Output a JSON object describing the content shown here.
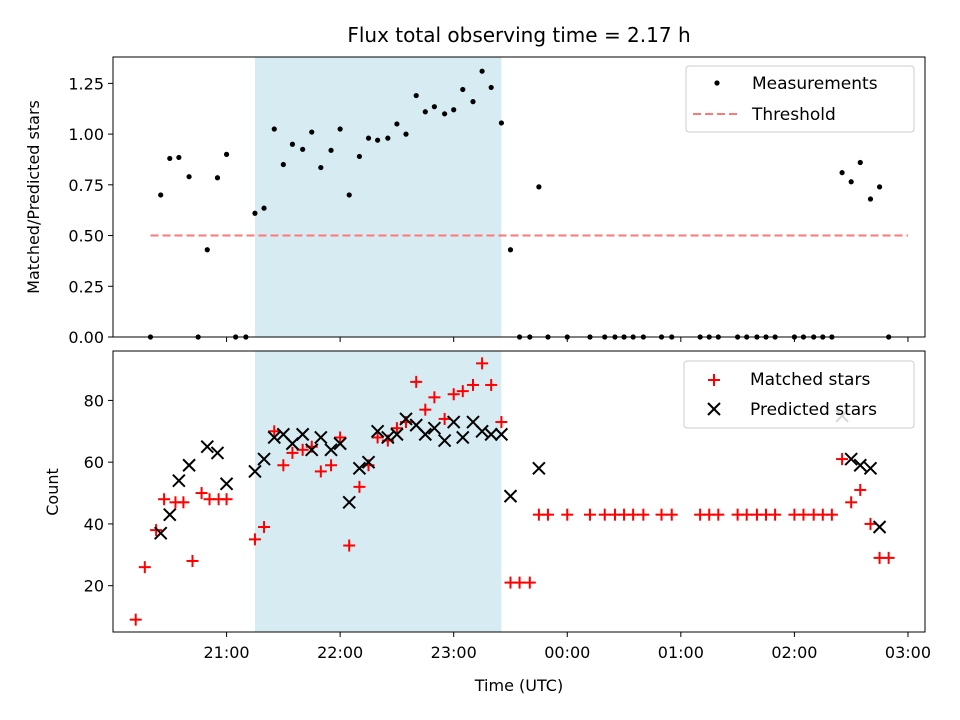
{
  "chart_data": [
    {
      "type": "scatter",
      "title": "Flux total observing time = 2.17 h",
      "ylabel": "Matched/Predicted stars",
      "xlabel": "",
      "x_axis": {
        "unit": "hours UTC (values > 24 are the next day)",
        "range": [
          20.0,
          27.15
        ],
        "ticks": [
          21,
          22,
          23,
          24,
          25,
          26,
          27
        ],
        "tick_labels": []
      },
      "y_axis": {
        "range": [
          0.0,
          1.38
        ],
        "ticks": [
          0.0,
          0.25,
          0.5,
          0.75,
          1.0,
          1.25
        ],
        "tick_labels": [
          "0.00",
          "0.25",
          "0.50",
          "0.75",
          "1.00",
          "1.25"
        ]
      },
      "highlight_span": {
        "x_start": 21.25,
        "x_end": 23.42,
        "color": "#add8e6"
      },
      "threshold": {
        "name": "Threshold",
        "value": 0.5,
        "x_start": 20.33,
        "x_end": 27.0,
        "color": "#ff7777"
      },
      "legend": {
        "placement": "top-right",
        "entries": [
          {
            "label": "Measurements",
            "marker": "dot"
          },
          {
            "label": "Threshold",
            "marker": "dash"
          }
        ]
      },
      "series": [
        {
          "name": "Measurements",
          "color": "#000000",
          "points": [
            [
              20.33,
              0.0
            ],
            [
              20.42,
              0.7
            ],
            [
              20.5,
              0.88
            ],
            [
              20.58,
              0.885
            ],
            [
              20.67,
              0.79
            ],
            [
              20.75,
              0.0
            ],
            [
              20.83,
              0.43
            ],
            [
              20.92,
              0.785
            ],
            [
              21.0,
              0.9
            ],
            [
              21.08,
              0.0
            ],
            [
              21.17,
              0.0
            ],
            [
              21.25,
              0.61
            ],
            [
              21.33,
              0.635
            ],
            [
              21.42,
              1.025
            ],
            [
              21.5,
              0.85
            ],
            [
              21.58,
              0.95
            ],
            [
              21.67,
              0.925
            ],
            [
              21.75,
              1.01
            ],
            [
              21.83,
              0.835
            ],
            [
              21.92,
              0.92
            ],
            [
              22.0,
              1.025
            ],
            [
              22.08,
              0.7
            ],
            [
              22.17,
              0.89
            ],
            [
              22.25,
              0.98
            ],
            [
              22.33,
              0.97
            ],
            [
              22.42,
              0.98
            ],
            [
              22.5,
              1.05
            ],
            [
              22.58,
              1.0
            ],
            [
              22.67,
              1.19
            ],
            [
              22.75,
              1.11
            ],
            [
              22.83,
              1.135
            ],
            [
              22.92,
              1.1
            ],
            [
              23.0,
              1.12
            ],
            [
              23.08,
              1.22
            ],
            [
              23.17,
              1.16
            ],
            [
              23.25,
              1.31
            ],
            [
              23.33,
              1.23
            ],
            [
              23.42,
              1.055
            ],
            [
              23.5,
              0.43
            ],
            [
              23.58,
              0.0
            ],
            [
              23.67,
              0.0
            ],
            [
              23.75,
              0.74
            ],
            [
              23.83,
              0.0
            ],
            [
              24.0,
              0.0
            ],
            [
              24.2,
              0.0
            ],
            [
              24.33,
              0.0
            ],
            [
              24.42,
              0.0
            ],
            [
              24.5,
              0.0
            ],
            [
              24.58,
              0.0
            ],
            [
              24.67,
              0.0
            ],
            [
              24.83,
              0.0
            ],
            [
              24.92,
              0.0
            ],
            [
              25.17,
              0.0
            ],
            [
              25.25,
              0.0
            ],
            [
              25.33,
              0.0
            ],
            [
              25.5,
              0.0
            ],
            [
              25.58,
              0.0
            ],
            [
              25.67,
              0.0
            ],
            [
              25.75,
              0.0
            ],
            [
              25.83,
              0.0
            ],
            [
              26.0,
              0.0
            ],
            [
              26.08,
              0.0
            ],
            [
              26.17,
              0.0
            ],
            [
              26.25,
              0.0
            ],
            [
              26.33,
              0.0
            ],
            [
              26.42,
              0.81
            ],
            [
              26.5,
              0.765
            ],
            [
              26.58,
              0.86
            ],
            [
              26.67,
              0.68
            ],
            [
              26.75,
              0.74
            ],
            [
              26.83,
              0.0
            ]
          ]
        }
      ]
    },
    {
      "type": "scatter",
      "title": "",
      "ylabel": "Count",
      "xlabel": "Time (UTC)",
      "x_axis": {
        "unit": "hours UTC (values > 24 are the next day)",
        "range": [
          20.0,
          27.15
        ],
        "ticks": [
          21,
          22,
          23,
          24,
          25,
          26,
          27
        ],
        "tick_labels": [
          "21:00",
          "22:00",
          "23:00",
          "00:00",
          "01:00",
          "02:00",
          "03:00"
        ]
      },
      "y_axis": {
        "range": [
          5,
          96
        ],
        "ticks": [
          20,
          40,
          60,
          80
        ],
        "tick_labels": [
          "20",
          "40",
          "60",
          "80"
        ]
      },
      "highlight_span": {
        "x_start": 21.25,
        "x_end": 23.42,
        "color": "#add8e6"
      },
      "legend": {
        "placement": "top-right",
        "entries": [
          {
            "label": "Matched stars",
            "marker": "plus"
          },
          {
            "label": "Predicted stars",
            "marker": "cross"
          }
        ]
      },
      "series": [
        {
          "name": "Matched stars",
          "marker": "plus",
          "color": "#ff0000",
          "points": [
            [
              20.2,
              9
            ],
            [
              20.28,
              26
            ],
            [
              20.38,
              38
            ],
            [
              20.45,
              48
            ],
            [
              20.55,
              47
            ],
            [
              20.62,
              47
            ],
            [
              20.7,
              28
            ],
            [
              20.78,
              50
            ],
            [
              20.85,
              48
            ],
            [
              20.93,
              48
            ],
            [
              21.0,
              48
            ],
            [
              21.25,
              35
            ],
            [
              21.33,
              39
            ],
            [
              21.42,
              70
            ],
            [
              21.5,
              59
            ],
            [
              21.58,
              63
            ],
            [
              21.67,
              64
            ],
            [
              21.75,
              65
            ],
            [
              21.83,
              57
            ],
            [
              21.92,
              59
            ],
            [
              22.0,
              68
            ],
            [
              22.08,
              33
            ],
            [
              22.17,
              52
            ],
            [
              22.25,
              59
            ],
            [
              22.33,
              68
            ],
            [
              22.42,
              67
            ],
            [
              22.5,
              71
            ],
            [
              22.58,
              73
            ],
            [
              22.67,
              86
            ],
            [
              22.75,
              77
            ],
            [
              22.83,
              81
            ],
            [
              22.92,
              74
            ],
            [
              23.0,
              82
            ],
            [
              23.08,
              83
            ],
            [
              23.17,
              85
            ],
            [
              23.25,
              92
            ],
            [
              23.33,
              85
            ],
            [
              23.42,
              73
            ],
            [
              23.5,
              21
            ],
            [
              23.58,
              21
            ],
            [
              23.67,
              21
            ],
            [
              23.75,
              43
            ],
            [
              23.83,
              43
            ],
            [
              24.0,
              43
            ],
            [
              24.2,
              43
            ],
            [
              24.33,
              43
            ],
            [
              24.42,
              43
            ],
            [
              24.5,
              43
            ],
            [
              24.58,
              43
            ],
            [
              24.67,
              43
            ],
            [
              24.83,
              43
            ],
            [
              24.92,
              43
            ],
            [
              25.17,
              43
            ],
            [
              25.25,
              43
            ],
            [
              25.33,
              43
            ],
            [
              25.5,
              43
            ],
            [
              25.58,
              43
            ],
            [
              25.67,
              43
            ],
            [
              25.75,
              43
            ],
            [
              25.83,
              43
            ],
            [
              26.0,
              43
            ],
            [
              26.08,
              43
            ],
            [
              26.17,
              43
            ],
            [
              26.25,
              43
            ],
            [
              26.33,
              43
            ],
            [
              26.42,
              61
            ],
            [
              26.5,
              47
            ],
            [
              26.58,
              51
            ],
            [
              26.67,
              40
            ],
            [
              26.75,
              29
            ],
            [
              26.83,
              29
            ]
          ]
        },
        {
          "name": "Predicted stars",
          "marker": "cross",
          "color": "#000000",
          "points": [
            [
              20.42,
              37
            ],
            [
              20.5,
              43
            ],
            [
              20.58,
              54
            ],
            [
              20.67,
              59
            ],
            [
              20.83,
              65
            ],
            [
              20.92,
              63
            ],
            [
              21.0,
              53
            ],
            [
              21.25,
              57
            ],
            [
              21.33,
              61
            ],
            [
              21.42,
              68
            ],
            [
              21.5,
              69
            ],
            [
              21.58,
              66
            ],
            [
              21.67,
              69
            ],
            [
              21.75,
              64
            ],
            [
              21.83,
              68
            ],
            [
              21.92,
              64
            ],
            [
              22.0,
              66
            ],
            [
              22.08,
              47
            ],
            [
              22.17,
              58
            ],
            [
              22.25,
              60
            ],
            [
              22.33,
              70
            ],
            [
              22.42,
              68
            ],
            [
              22.5,
              69
            ],
            [
              22.58,
              74
            ],
            [
              22.67,
              72
            ],
            [
              22.75,
              69
            ],
            [
              22.83,
              71
            ],
            [
              22.92,
              67
            ],
            [
              23.0,
              73
            ],
            [
              23.08,
              68
            ],
            [
              23.17,
              73
            ],
            [
              23.25,
              70
            ],
            [
              23.33,
              69
            ],
            [
              23.42,
              69
            ],
            [
              23.5,
              49
            ],
            [
              23.75,
              58
            ],
            [
              26.42,
              75
            ],
            [
              26.5,
              61
            ],
            [
              26.58,
              59
            ],
            [
              26.67,
              58
            ],
            [
              26.75,
              39
            ]
          ]
        }
      ]
    }
  ]
}
